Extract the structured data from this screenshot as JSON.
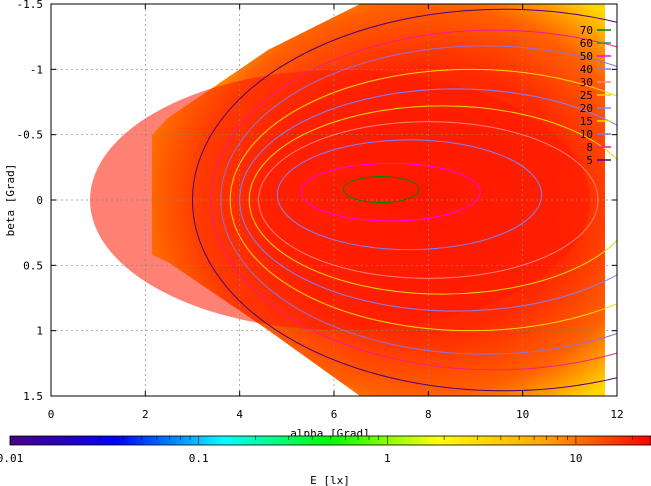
{
  "chart_data": {
    "type": "heatmap",
    "title": "",
    "xlabel": "alpha [Grad]",
    "ylabel": "beta [Grad]",
    "xlim": [
      0,
      12
    ],
    "ylim": [
      -1.5,
      1.5
    ],
    "y_axis_inverted": true,
    "x_ticks": [
      0,
      2,
      4,
      6,
      8,
      10,
      12
    ],
    "x_tick_labels": [
      "0",
      "2",
      "4",
      "6",
      "8",
      "10",
      "12"
    ],
    "y_ticks": [
      -1.5,
      -1,
      -0.5,
      0,
      0.5,
      1,
      1.5
    ],
    "y_tick_labels": [
      "-1.5",
      "-1",
      "-0.5",
      "0",
      "0.5",
      "1",
      "1.5"
    ],
    "grid": true,
    "legend_position": "top-right",
    "contour_levels": [
      {
        "label": "70",
        "color": "#008000"
      },
      {
        "label": "60",
        "color": "#2e8b57"
      },
      {
        "label": "50",
        "color": "#ff00ff"
      },
      {
        "label": "40",
        "color": "#8080ff"
      },
      {
        "label": "30",
        "color": "#ff8080"
      },
      {
        "label": "25",
        "color": "#dddd00"
      },
      {
        "label": "20",
        "color": "#8080ff"
      },
      {
        "label": "15",
        "color": "#ffd700"
      },
      {
        "label": "10",
        "color": "#9370db"
      },
      {
        "label": "8",
        "color": "#ff1493"
      },
      {
        "label": "5",
        "color": "#4b0082"
      }
    ],
    "contours": [
      {
        "level": "70",
        "cx": 7.0,
        "cy": -0.08,
        "rx": 0.8,
        "ry": 0.1
      },
      {
        "level": "50",
        "cx": 7.2,
        "cy": -0.06,
        "rx": 1.9,
        "ry": 0.22
      },
      {
        "level": "40",
        "cx": 7.6,
        "cy": -0.04,
        "rx": 2.8,
        "ry": 0.42
      },
      {
        "level": "30",
        "cx": 8.0,
        "cy": 0.0,
        "rx": 3.6,
        "ry": 0.6
      },
      {
        "level": "25",
        "cx": 8.3,
        "cy": 0.0,
        "rx": 4.1,
        "ry": 0.72
      },
      {
        "level": "20",
        "cx": 8.6,
        "cy": 0.0,
        "rx": 4.6,
        "ry": 0.85
      },
      {
        "level": "15",
        "cx": 8.9,
        "cy": 0.0,
        "rx": 5.1,
        "ry": 1.0
      },
      {
        "level": "10",
        "cx": 9.2,
        "cy": 0.0,
        "rx": 5.6,
        "ry": 1.18
      },
      {
        "level": "8",
        "cx": 9.4,
        "cy": 0.0,
        "rx": 6.0,
        "ry": 1.3
      },
      {
        "level": "5",
        "cx": 9.6,
        "cy": 0.0,
        "rx": 6.6,
        "ry": 1.46
      }
    ],
    "colorbar": {
      "label": "E [lx]",
      "scale": "log",
      "range": [
        0.01,
        25
      ],
      "tick_values": [
        0.01,
        0.1,
        1,
        10
      ],
      "tick_labels": [
        "0.01",
        "0.1",
        "1",
        "10"
      ],
      "colors": [
        "#4b0082",
        "#0000ff",
        "#00ffff",
        "#00ff00",
        "#ffff00",
        "#ffa500",
        "#ff0000"
      ]
    }
  }
}
